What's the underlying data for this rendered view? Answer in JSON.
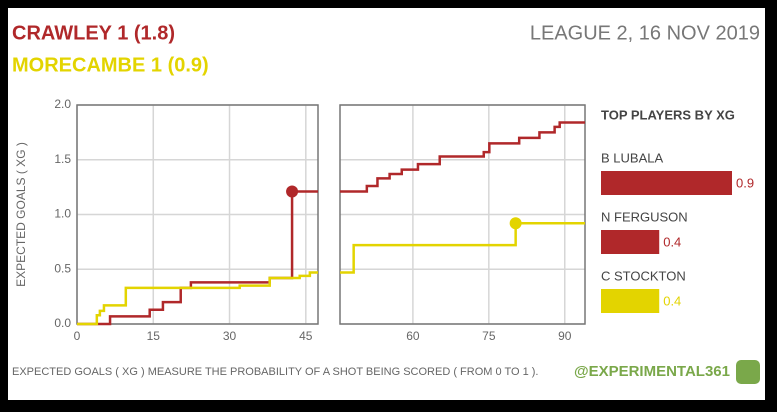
{
  "header": {
    "home": "CRAWLEY 1 (1.8)",
    "away": "MORECAMBE 1 (0.9)",
    "match": "LEAGUE 2, 16 NOV 2019"
  },
  "footer": {
    "note": "EXPECTED GOALS ( XG ) MEASURE THE PROBABILITY OF A SHOT BEING SCORED ( FROM 0 TO 1 ).",
    "credit": "@EXPERIMENTAL361"
  },
  "chart_data": [
    {
      "type": "step",
      "y_label": "EXPECTED GOALS ( XG )",
      "xlim": [
        0,
        47.4
      ],
      "ylim": [
        0,
        2
      ],
      "xticks": [
        0,
        15,
        30,
        45
      ],
      "yticks": [
        {
          "value": 0,
          "label": "0.0"
        },
        {
          "value": 0.5,
          "label": "0.5"
        },
        {
          "value": 1,
          "label": "1.0"
        },
        {
          "value": 1.5,
          "label": "1.5"
        },
        {
          "value": 2,
          "label": "2.0"
        }
      ],
      "show_ytick_labels": true,
      "grid": true,
      "series": [
        {
          "color": "#b0282a",
          "x": [
            0,
            6.5,
            14.3,
            16.9,
            20.4,
            22.4,
            37.9,
            42.3
          ],
          "values": [
            0,
            0.07,
            0.13,
            0.2,
            0.33,
            0.38,
            0.42,
            1.21
          ],
          "goals": {
            "x": [
              42.3
            ],
            "values": [
              1.21
            ]
          }
        },
        {
          "color": "#e3d400",
          "x": [
            0,
            3.9,
            4.5,
            5.3,
            9.6,
            32,
            37.9,
            43.8,
            45.8
          ],
          "values": [
            0,
            0.08,
            0.12,
            0.17,
            0.33,
            0.35,
            0.42,
            0.44,
            0.47
          ],
          "goals": {
            "x": [],
            "values": []
          }
        }
      ]
    },
    {
      "type": "step",
      "xlim": [
        45.6,
        94
      ],
      "ylim": [
        0,
        2
      ],
      "xticks": [
        60,
        75,
        90
      ],
      "yticks": [
        {
          "value": 0,
          "label": "0.0"
        },
        {
          "value": 0.5,
          "label": "0.5"
        },
        {
          "value": 1,
          "label": "1.0"
        },
        {
          "value": 1.5,
          "label": "1.5"
        },
        {
          "value": 2,
          "label": "2.0"
        }
      ],
      "show_ytick_labels": false,
      "grid": true,
      "series": [
        {
          "color": "#b0282a",
          "x": [
            45.6,
            50.9,
            53,
            55.4,
            57.8,
            61,
            65.3,
            74,
            75.1,
            81,
            85,
            88,
            89
          ],
          "values": [
            1.21,
            1.26,
            1.33,
            1.37,
            1.41,
            1.46,
            1.53,
            1.57,
            1.65,
            1.7,
            1.75,
            1.8,
            1.84
          ],
          "goals": {
            "x": [],
            "values": []
          }
        },
        {
          "color": "#e3d400",
          "x": [
            45.6,
            48.3,
            80.3
          ],
          "values": [
            0.47,
            0.72,
            0.92
          ],
          "goals": {
            "x": [
              80.3
            ],
            "values": [
              0.92
            ]
          }
        }
      ]
    },
    {
      "type": "hbar",
      "title": "TOP PLAYERS BY XG",
      "categories": [
        "B LUBALA",
        "N FERGUSON",
        "C STOCKTON"
      ],
      "values": [
        0.9,
        0.4,
        0.4
      ],
      "colors": [
        "#b0282a",
        "#b0282a",
        "#e3d400"
      ]
    }
  ]
}
